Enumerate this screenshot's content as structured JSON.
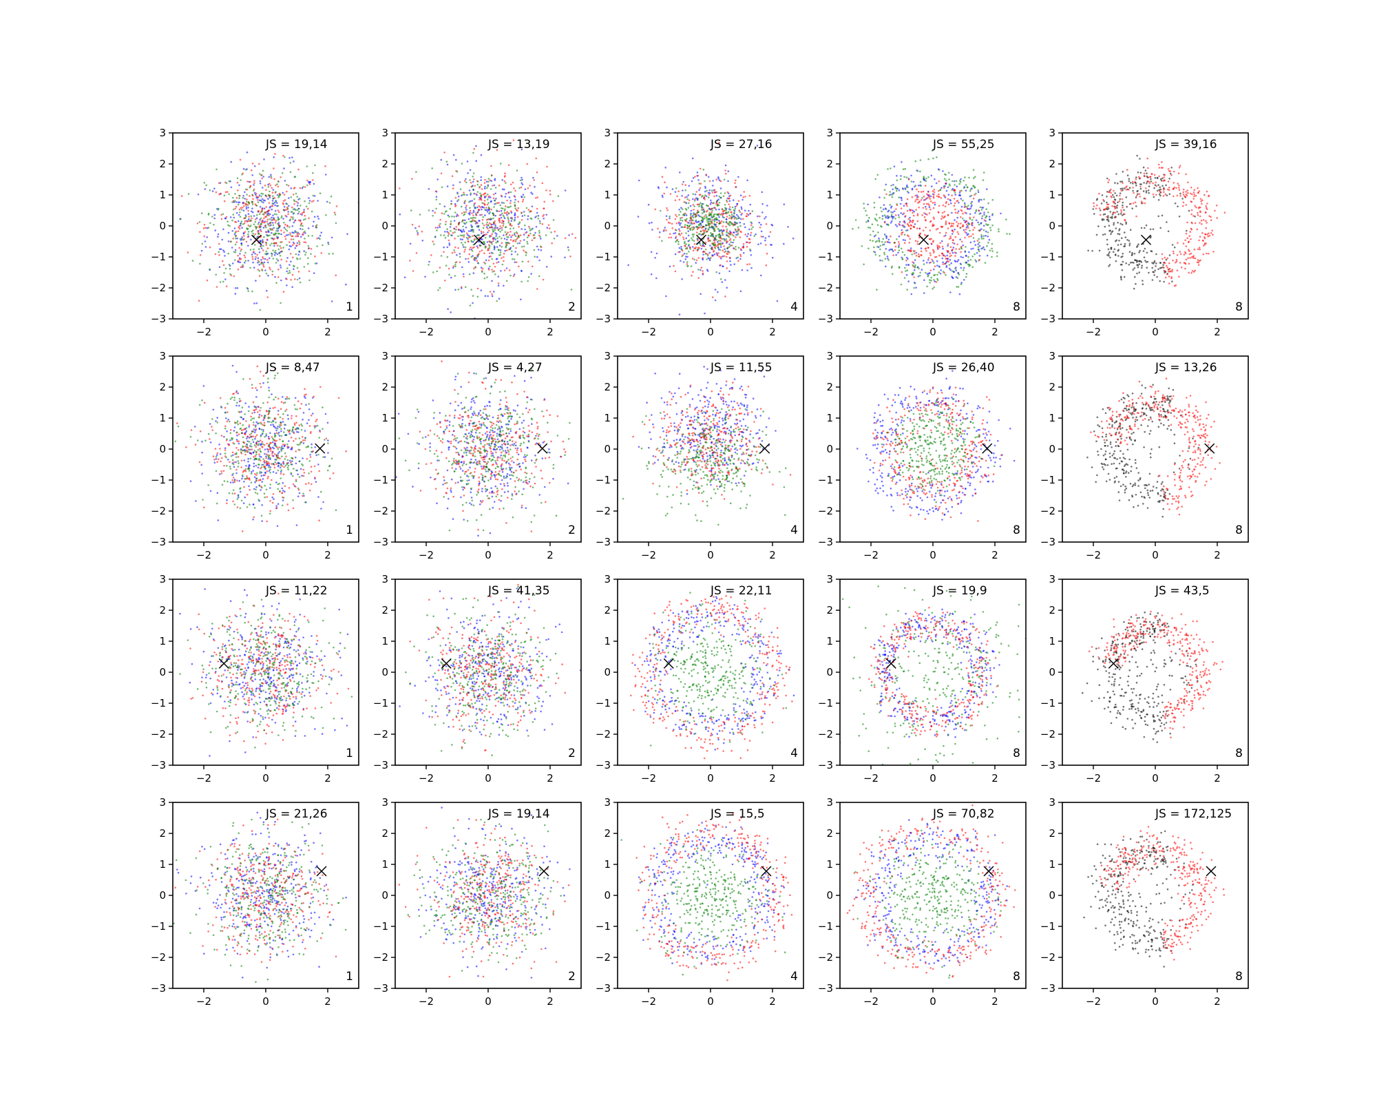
{
  "chart_data": {
    "type": "scatter",
    "grid_rows": 4,
    "grid_cols": 5,
    "xlim": [
      -3,
      3
    ],
    "ylim": [
      -3,
      3
    ],
    "xticks": [
      -2,
      0,
      2
    ],
    "yticks": [
      -3,
      -2,
      -1,
      0,
      1,
      2,
      3
    ],
    "tick_labels_x": [
      "−2",
      "0",
      "2"
    ],
    "tick_labels_y": [
      "−3",
      "−2",
      "−1",
      "0",
      "1",
      "2",
      "3"
    ],
    "grid": false,
    "legend": "none",
    "colors": {
      "blue": "#0000ff",
      "red": "#ff0000",
      "green": "#008000",
      "black": "#000000"
    },
    "rows": [
      {
        "marker": [
          -0.3,
          -0.45
        ],
        "panels": [
          {
            "js_text": "JS = 19,14",
            "k_text": "1",
            "pattern": "blob",
            "colors": [
              "blue",
              "red",
              "green"
            ]
          },
          {
            "js_text": "JS = 13,19",
            "k_text": "2",
            "pattern": "blob",
            "colors": [
              "blue",
              "red",
              "green"
            ]
          },
          {
            "js_text": "JS = 27,16",
            "k_text": "4",
            "pattern": "blob-center",
            "colors": [
              "blue",
              "red",
              "green"
            ]
          },
          {
            "js_text": "JS = 55,25",
            "k_text": "8",
            "pattern": "ring",
            "colors": [
              "green",
              "blue",
              "red"
            ]
          },
          {
            "js_text": "JS = 39,16",
            "k_text": "8",
            "pattern": "ring-split",
            "colors": [
              "black",
              "red"
            ]
          }
        ]
      },
      {
        "marker": [
          1.75,
          0.02
        ],
        "panels": [
          {
            "js_text": "JS = 8,47",
            "k_text": "1",
            "pattern": "blob",
            "colors": [
              "blue",
              "red",
              "green"
            ]
          },
          {
            "js_text": "JS = 4,27",
            "k_text": "2",
            "pattern": "blob",
            "colors": [
              "blue",
              "red",
              "green"
            ]
          },
          {
            "js_text": "JS = 11,55",
            "k_text": "4",
            "pattern": "blob-top",
            "colors": [
              "blue",
              "red",
              "green"
            ]
          },
          {
            "js_text": "JS = 26,40",
            "k_text": "8",
            "pattern": "ring",
            "colors": [
              "blue",
              "red",
              "green"
            ]
          },
          {
            "js_text": "JS = 13,26",
            "k_text": "8",
            "pattern": "ring-split",
            "colors": [
              "black",
              "red"
            ]
          }
        ]
      },
      {
        "marker": [
          -1.35,
          0.28
        ],
        "panels": [
          {
            "js_text": "JS = 11,22",
            "k_text": "1",
            "pattern": "blob",
            "colors": [
              "blue",
              "red",
              "green"
            ]
          },
          {
            "js_text": "JS = 41,35",
            "k_text": "2",
            "pattern": "blob",
            "colors": [
              "blue",
              "red",
              "green"
            ]
          },
          {
            "js_text": "JS = 22,11",
            "k_text": "4",
            "pattern": "ring-filled",
            "colors": [
              "blue",
              "red",
              "green"
            ]
          },
          {
            "js_text": "JS = 19,9",
            "k_text": "8",
            "pattern": "ring-wide",
            "colors": [
              "green",
              "blue",
              "red"
            ]
          },
          {
            "js_text": "JS = 43,5",
            "k_text": "8",
            "pattern": "ring-split",
            "colors": [
              "black",
              "red"
            ]
          }
        ]
      },
      {
        "marker": [
          1.8,
          0.78
        ],
        "panels": [
          {
            "js_text": "JS = 21,26",
            "k_text": "1",
            "pattern": "blob",
            "colors": [
              "blue",
              "red",
              "green"
            ]
          },
          {
            "js_text": "JS = 19,14",
            "k_text": "2",
            "pattern": "blob",
            "colors": [
              "blue",
              "red",
              "green"
            ]
          },
          {
            "js_text": "JS = 15,5",
            "k_text": "4",
            "pattern": "ring-filled",
            "colors": [
              "blue",
              "red",
              "green"
            ]
          },
          {
            "js_text": "JS = 70,82",
            "k_text": "8",
            "pattern": "ring-filled",
            "colors": [
              "blue",
              "red",
              "green"
            ]
          },
          {
            "js_text": "JS = 172,125",
            "k_text": "8",
            "pattern": "ring-split",
            "colors": [
              "black",
              "red"
            ]
          }
        ]
      }
    ]
  }
}
